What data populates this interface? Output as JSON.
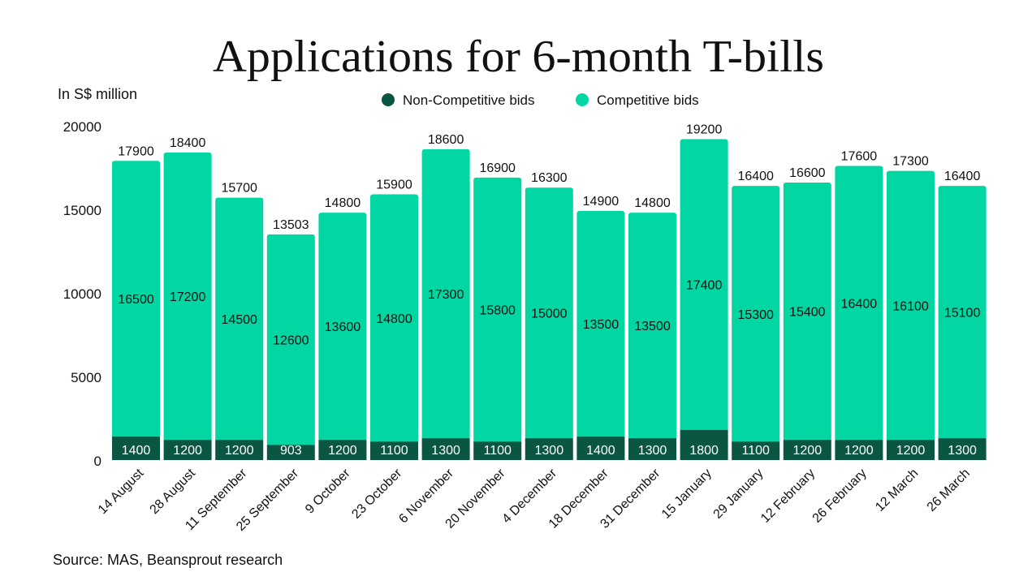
{
  "chart_data": {
    "type": "bar",
    "stacked": true,
    "title": "Applications for 6-month T-bills",
    "ylabel": "In S$ million",
    "xlabel": "",
    "ylim": [
      0,
      20000
    ],
    "yticks": [
      0,
      5000,
      10000,
      15000,
      20000
    ],
    "grid": false,
    "legend_position": "top-center",
    "source": "Source: MAS, Beansprout research",
    "categories": [
      "14 August",
      "28 August",
      "11 September",
      "25 September",
      "9 October",
      "23 October",
      "6 November",
      "20 November",
      "4 December",
      "18 December",
      "31 December",
      "15 January",
      "29 January",
      "12 February",
      "26 February",
      "12 March",
      "26 March"
    ],
    "series": [
      {
        "name": "Non-Competitive bids",
        "color": "#0b5643",
        "values": [
          1400,
          1200,
          1200,
          903,
          1200,
          1100,
          1300,
          1100,
          1300,
          1400,
          1300,
          1800,
          1100,
          1200,
          1200,
          1200,
          1300
        ]
      },
      {
        "name": "Competitive bids",
        "color": "#02d6a2",
        "values": [
          16500,
          17200,
          14500,
          12600,
          13600,
          14800,
          17300,
          15800,
          15000,
          13500,
          13500,
          17400,
          15300,
          15400,
          16400,
          16100,
          15100
        ]
      }
    ],
    "totals": [
      17900,
      18400,
      15700,
      13503,
      14800,
      15900,
      18600,
      16900,
      16300,
      14900,
      14800,
      19200,
      16400,
      16600,
      17600,
      17300,
      16400
    ]
  }
}
